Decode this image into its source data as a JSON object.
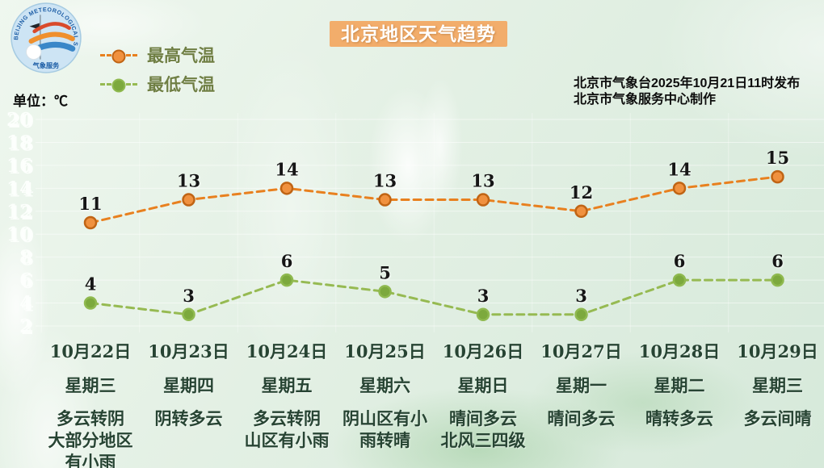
{
  "header": {
    "title": "北京地区天气趋势",
    "unit_label": "单位：℃",
    "issued_line1": "北京市气象台2025年10月21日11时发布",
    "issued_line2": "北京市气象服务中心制作",
    "logo": {
      "arc_text": "BEIJING METEOROLOGICAL SERVICE",
      "bottom_text": "气象服务"
    }
  },
  "legend": [
    {
      "label": "最高气温",
      "color": "#e8801f"
    },
    {
      "label": "最低气温",
      "color": "#96ba52"
    }
  ],
  "colors": {
    "title_banner": "#f2ad6b",
    "high_line": "#e8801f",
    "high_marker_fill": "#f0913f",
    "high_marker_stroke": "#c06414",
    "low_line": "#96ba52",
    "low_marker_fill": "#7ca93d",
    "low_marker_stroke": "#8fb94f",
    "label_text": "#274433",
    "grid": "rgba(255,255,255,0.5)"
  },
  "chart_data": {
    "type": "line",
    "title": "北京地区天气趋势",
    "ylabel": "单位：℃",
    "ylim": [
      2,
      20
    ],
    "yticks": [
      20,
      18,
      16,
      14,
      12,
      10,
      8,
      6,
      4,
      2
    ],
    "grid": true,
    "legend_position": "top-left",
    "categories": [
      {
        "date": "10月22日",
        "weekday": "星期三",
        "condition": [
          "多云转阴",
          "大部分地区",
          "有小雨"
        ]
      },
      {
        "date": "10月23日",
        "weekday": "星期四",
        "condition": [
          "阴转多云"
        ]
      },
      {
        "date": "10月24日",
        "weekday": "星期五",
        "condition": [
          "多云转阴",
          "山区有小雨"
        ]
      },
      {
        "date": "10月25日",
        "weekday": "星期六",
        "condition": [
          "阴山区有小",
          "雨转晴"
        ]
      },
      {
        "date": "10月26日",
        "weekday": "星期日",
        "condition": [
          "晴间多云",
          "北风三四级"
        ]
      },
      {
        "date": "10月27日",
        "weekday": "星期一",
        "condition": [
          "晴间多云"
        ]
      },
      {
        "date": "10月28日",
        "weekday": "星期二",
        "condition": [
          "晴转多云"
        ]
      },
      {
        "date": "10月29日",
        "weekday": "星期三",
        "condition": [
          "多云间晴"
        ]
      }
    ],
    "series": [
      {
        "name": "最高气温",
        "values": [
          11,
          13,
          14,
          13,
          13,
          12,
          14,
          15
        ]
      },
      {
        "name": "最低气温",
        "values": [
          4,
          3,
          6,
          5,
          3,
          3,
          6,
          6
        ]
      }
    ]
  }
}
